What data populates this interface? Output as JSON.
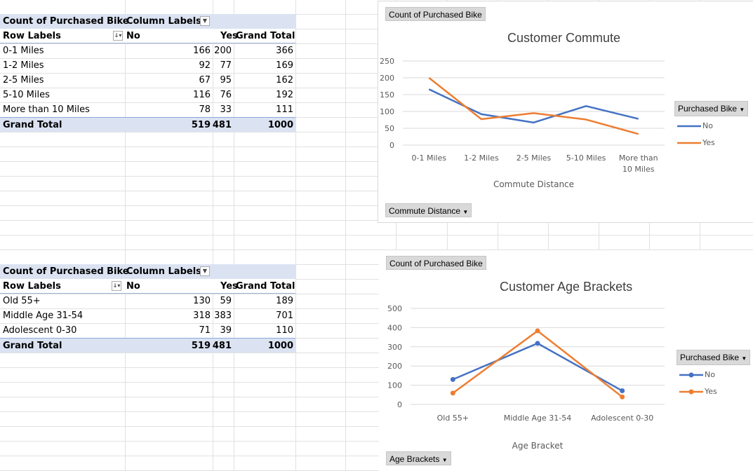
{
  "pivot1": {
    "corner_label": "Count of Purchased Bike",
    "col_labels": "Column Labels",
    "row_labels": "Row Labels",
    "col_no": "No",
    "col_yes": "Yes",
    "col_total": "Grand Total",
    "rows": [
      {
        "label": "0-1 Miles",
        "no": "166",
        "yes": "200",
        "total": "366"
      },
      {
        "label": "1-2 Miles",
        "no": "92",
        "yes": "77",
        "total": "169"
      },
      {
        "label": "2-5 Miles",
        "no": "67",
        "yes": "95",
        "total": "162"
      },
      {
        "label": "5-10 Miles",
        "no": "116",
        "yes": "76",
        "total": "192"
      },
      {
        "label": "More than 10 Miles",
        "no": "78",
        "yes": "33",
        "total": "111"
      }
    ],
    "grand_total": {
      "label": "Grand Total",
      "no": "519",
      "yes": "481",
      "total": "1000"
    }
  },
  "pivot2": {
    "corner_label": "Count of Purchased Bike",
    "col_labels": "Column Labels",
    "row_labels": "Row Labels",
    "col_no": "No",
    "col_yes": "Yes",
    "col_total": "Grand Total",
    "rows": [
      {
        "label": "Old  55+",
        "no": "130",
        "yes": "59",
        "total": "189"
      },
      {
        "label": "Middle Age 31-54",
        "no": "318",
        "yes": "383",
        "total": "701"
      },
      {
        "label": "Adolescent 0-30",
        "no": "71",
        "yes": "39",
        "total": "110"
      }
    ],
    "grand_total": {
      "label": "Grand Total",
      "no": "519",
      "yes": "481",
      "total": "1000"
    }
  },
  "chart1": {
    "value_field_button": "Count of Purchased Bike",
    "axis_field_button": "Commute Distance",
    "legend_field_button": "Purchased Bike",
    "legend_no": "No",
    "legend_yes": "Yes"
  },
  "chart2": {
    "value_field_button": "Count of Purchased Bike",
    "axis_field_button": "Age Brackets",
    "legend_field_button": "Purchased Bike",
    "legend_no": "No",
    "legend_yes": "Yes"
  },
  "colors": {
    "no": "#4472c4",
    "yes": "#ed7d31",
    "gridline": "#d9d9d9",
    "pivot_header": "#dbe3f2"
  },
  "chart_data": [
    {
      "type": "line",
      "title": "Customer Commute",
      "xlabel": "Commute Distance",
      "ylabel": "",
      "categories": [
        "0-1 Miles",
        "1-2 Miles",
        "2-5 Miles",
        "5-10 Miles",
        "More than 10 Miles"
      ],
      "category_lines": [
        [
          "0-1 Miles"
        ],
        [
          "1-2 Miles"
        ],
        [
          "2-5 Miles"
        ],
        [
          "5-10 Miles"
        ],
        [
          "More than",
          "10 Miles"
        ]
      ],
      "series": [
        {
          "name": "No",
          "values": [
            166,
            92,
            67,
            116,
            78
          ]
        },
        {
          "name": "Yes",
          "values": [
            200,
            77,
            95,
            76,
            33
          ]
        }
      ],
      "ylim": [
        0,
        250
      ],
      "yticks": [
        0,
        50,
        100,
        150,
        200,
        250
      ],
      "markers": false,
      "grid": true,
      "legend": "right"
    },
    {
      "type": "line",
      "title": "Customer Age Brackets",
      "xlabel": "Age Bracket",
      "ylabel": "",
      "categories": [
        "Old  55+",
        "Middle Age 31-54",
        "Adolescent 0-30"
      ],
      "category_lines": [
        [
          "Old  55+"
        ],
        [
          "Middle Age 31-54"
        ],
        [
          "Adolescent 0-30"
        ]
      ],
      "series": [
        {
          "name": "No",
          "values": [
            130,
            318,
            71
          ]
        },
        {
          "name": "Yes",
          "values": [
            59,
            383,
            39
          ]
        }
      ],
      "ylim": [
        0,
        500
      ],
      "yticks": [
        0,
        100,
        200,
        300,
        400,
        500
      ],
      "markers": true,
      "grid": true,
      "legend": "right"
    }
  ]
}
